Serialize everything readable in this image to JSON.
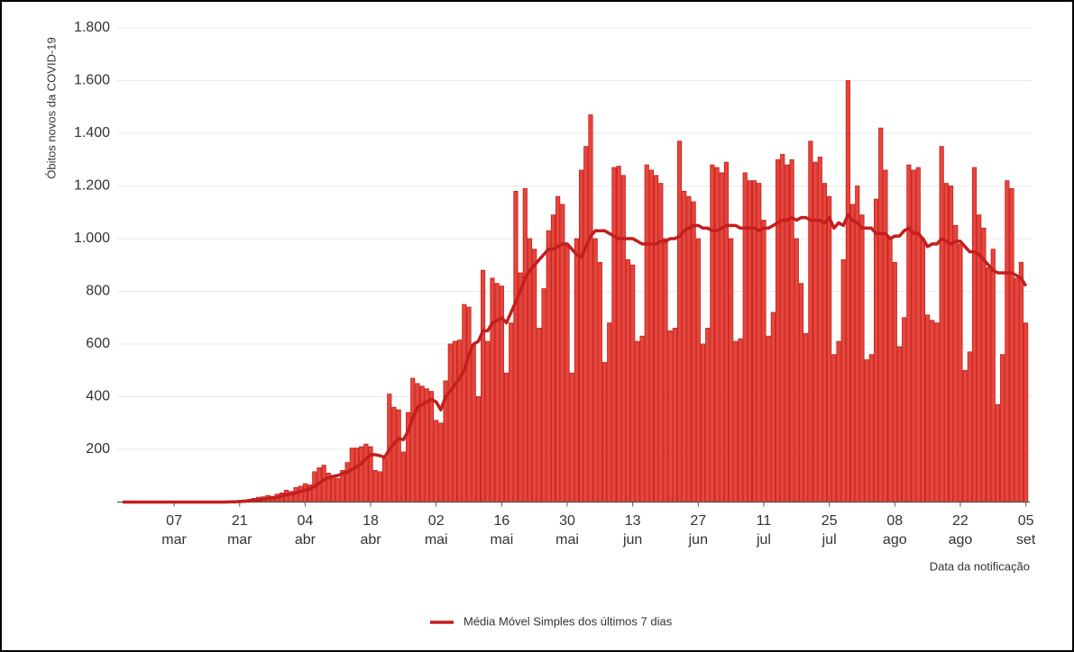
{
  "chart_data": {
    "type": "bar",
    "y_label": "Óbitos novos da COVID-19",
    "x_label": "Data da notificação",
    "color": "#e8453c",
    "edge_color": "#c0201a",
    "grid": true,
    "legend": "bottom",
    "ylim": [
      0,
      1800
    ],
    "yticks": [
      200,
      400,
      600,
      800,
      {
        "value": 1000,
        "label": "1.000"
      },
      {
        "value": 1200,
        "label": "1.200"
      },
      {
        "value": 1400,
        "label": "1.400"
      },
      {
        "value": 1600,
        "label": "1.600"
      },
      {
        "value": 1800,
        "label": "1.800"
      }
    ],
    "categories": [
      null,
      null,
      null,
      null,
      null,
      null,
      null,
      null,
      null,
      null,
      null,
      "07 mar",
      null,
      null,
      null,
      null,
      null,
      null,
      null,
      null,
      null,
      null,
      null,
      null,
      null,
      "21 mar",
      null,
      null,
      null,
      null,
      null,
      null,
      null,
      null,
      null,
      null,
      null,
      null,
      null,
      "04 abr",
      null,
      null,
      null,
      null,
      null,
      null,
      null,
      null,
      null,
      null,
      null,
      null,
      null,
      "18 abr",
      null,
      null,
      null,
      null,
      null,
      null,
      null,
      null,
      null,
      null,
      null,
      null,
      null,
      "02 mai",
      null,
      null,
      null,
      null,
      null,
      null,
      null,
      null,
      null,
      null,
      null,
      null,
      null,
      "16 mai",
      null,
      null,
      null,
      null,
      null,
      null,
      null,
      null,
      null,
      null,
      null,
      null,
      null,
      "30 mai",
      null,
      null,
      null,
      null,
      null,
      null,
      null,
      null,
      null,
      null,
      null,
      null,
      null,
      "13 jun",
      null,
      null,
      null,
      null,
      null,
      null,
      null,
      null,
      null,
      null,
      null,
      null,
      null,
      "27 jun",
      null,
      null,
      null,
      null,
      null,
      null,
      null,
      null,
      null,
      null,
      null,
      null,
      null,
      "11 jul",
      null,
      null,
      null,
      null,
      null,
      null,
      null,
      null,
      null,
      null,
      null,
      null,
      null,
      "25 jul",
      null,
      null,
      null,
      null,
      null,
      null,
      null,
      null,
      null,
      null,
      null,
      null,
      null,
      "08 ago",
      null,
      null,
      null,
      null,
      null,
      null,
      null,
      null,
      null,
      null,
      null,
      null,
      null,
      "22 ago",
      null,
      null,
      null,
      null,
      null,
      null,
      null,
      null,
      null,
      null,
      null,
      null,
      null,
      "05 set"
    ],
    "values": [
      0,
      0,
      0,
      0,
      0,
      0,
      0,
      0,
      0,
      0,
      0,
      0,
      0,
      0,
      0,
      0,
      0,
      0,
      0,
      0,
      0,
      1,
      2,
      3,
      4,
      6,
      8,
      10,
      14,
      18,
      20,
      25,
      22,
      30,
      35,
      45,
      40,
      55,
      60,
      70,
      65,
      115,
      130,
      140,
      110,
      100,
      90,
      120,
      150,
      205,
      205,
      210,
      220,
      210,
      120,
      115,
      165,
      410,
      360,
      350,
      190,
      340,
      470,
      450,
      440,
      430,
      420,
      310,
      300,
      460,
      600,
      610,
      615,
      750,
      740,
      600,
      400,
      880,
      610,
      850,
      830,
      820,
      490,
      680,
      1180,
      870,
      1190,
      1000,
      960,
      660,
      810,
      1030,
      1090,
      1160,
      1130,
      980,
      490,
      1000,
      1260,
      1350,
      1470,
      1000,
      910,
      530,
      680,
      1270,
      1275,
      1240,
      920,
      900,
      610,
      630,
      1280,
      1260,
      1240,
      1210,
      1000,
      650,
      660,
      1370,
      1180,
      1160,
      1140,
      1000,
      600,
      660,
      1280,
      1270,
      1250,
      1290,
      1000,
      610,
      620,
      1250,
      1220,
      1220,
      1210,
      1070,
      630,
      720,
      1300,
      1320,
      1280,
      1300,
      1000,
      830,
      640,
      1370,
      1290,
      1310,
      1210,
      1160,
      560,
      610,
      920,
      1600,
      1130,
      1200,
      1090,
      540,
      560,
      1150,
      1420,
      1260,
      1000,
      910,
      590,
      700,
      1280,
      1260,
      1270,
      1000,
      710,
      690,
      680,
      1350,
      1210,
      1200,
      1050,
      980,
      500,
      570,
      1270,
      1090,
      1040,
      890,
      960,
      370,
      560,
      1220,
      1190,
      850,
      910,
      680
    ],
    "series": [
      {
        "name": "Média Móvel Simples dos últimos 7 dias",
        "type": "line",
        "color": "#c41e1e",
        "values": [
          0,
          0,
          0,
          0,
          0,
          0,
          0,
          0,
          0,
          0,
          0,
          0,
          0,
          0,
          0,
          0,
          0,
          0,
          0,
          0,
          0,
          0,
          0,
          1,
          1,
          2,
          3,
          5,
          6,
          8,
          10,
          13,
          15,
          18,
          23,
          27,
          30,
          35,
          40,
          45,
          50,
          60,
          72,
          85,
          92,
          98,
          101,
          108,
          113,
          124,
          133,
          147,
          164,
          180,
          180,
          176,
          170,
          200,
          222,
          241,
          237,
          269,
          320,
          360,
          370,
          380,
          390,
          380,
          350,
          400,
          420,
          445,
          470,
          500,
          560,
          600,
          610,
          650,
          650,
          680,
          690,
          700,
          680,
          720,
          760,
          800,
          850,
          880,
          900,
          920,
          940,
          960,
          960,
          970,
          980,
          980,
          960,
          940,
          930,
          970,
          1010,
          1030,
          1030,
          1030,
          1020,
          1010,
          1000,
          1000,
          1000,
          1000,
          990,
          980,
          980,
          980,
          980,
          990,
          990,
          1000,
          1000,
          1010,
          1030,
          1040,
          1050,
          1050,
          1040,
          1040,
          1030,
          1030,
          1040,
          1050,
          1050,
          1050,
          1040,
          1040,
          1040,
          1040,
          1030,
          1040,
          1040,
          1050,
          1060,
          1070,
          1070,
          1080,
          1070,
          1080,
          1080,
          1070,
          1070,
          1070,
          1060,
          1080,
          1040,
          1060,
          1050,
          1090,
          1070,
          1060,
          1040,
          1040,
          1040,
          1020,
          1020,
          1020,
          1000,
          1010,
          1010,
          1030,
          1040,
          1020,
          1020,
          1000,
          970,
          980,
          980,
          1000,
          990,
          980,
          990,
          990,
          970,
          950,
          950,
          940,
          920,
          900,
          880,
          870,
          870,
          870,
          870,
          860,
          850,
          820
        ]
      }
    ]
  }
}
